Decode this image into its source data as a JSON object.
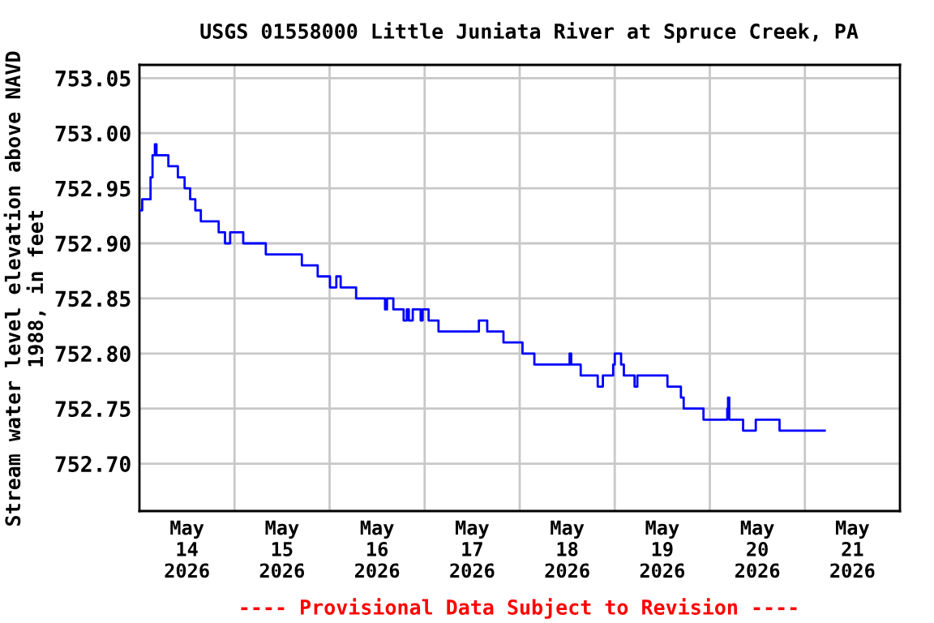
{
  "chart_data": {
    "type": "step",
    "title": "USGS 01558000 Little Juniata River at Spruce Creek, PA",
    "ylabel": "Stream water level elevation above NAVD\n1988, in feet",
    "annotations": [
      "---- Provisional Data Subject to Revision ----"
    ],
    "series": [
      {
        "color": "#0000ff",
        "x": [
          "2026-05-14T00:00",
          "2026-05-14T00:42",
          "2026-05-14T02:48",
          "2026-05-14T03:18",
          "2026-05-14T03:54",
          "2026-05-14T04:18",
          "2026-05-14T07:18",
          "2026-05-14T09:42",
          "2026-05-14T11:24",
          "2026-05-14T12:48",
          "2026-05-14T14:06",
          "2026-05-14T15:30",
          "2026-05-14T20:00",
          "2026-05-14T21:36",
          "2026-05-14T22:54",
          "2026-05-15T02:12",
          "2026-05-15T07:54",
          "2026-05-15T17:00",
          "2026-05-15T21:00",
          "2026-05-16T00:06",
          "2026-05-16T01:42",
          "2026-05-16T02:48",
          "2026-05-16T06:42",
          "2026-05-16T14:00",
          "2026-05-16T14:30",
          "2026-05-16T16:06",
          "2026-05-16T18:42",
          "2026-05-16T19:30",
          "2026-05-16T20:00",
          "2026-05-16T21:00",
          "2026-05-16T23:00",
          "2026-05-16T23:30",
          "2026-05-17T01:00",
          "2026-05-17T03:30",
          "2026-05-17T13:42",
          "2026-05-17T15:48",
          "2026-05-17T19:54",
          "2026-05-18T00:42",
          "2026-05-18T03:42",
          "2026-05-18T12:36",
          "2026-05-18T13:00",
          "2026-05-18T15:24",
          "2026-05-18T19:42",
          "2026-05-18T21:00",
          "2026-05-18T23:36",
          "2026-05-19T00:00",
          "2026-05-19T01:36",
          "2026-05-19T02:18",
          "2026-05-19T05:00",
          "2026-05-19T05:42",
          "2026-05-19T13:18",
          "2026-05-19T16:42",
          "2026-05-19T17:24",
          "2026-05-19T22:24",
          "2026-05-20T04:24",
          "2026-05-20T04:36",
          "2026-05-20T04:54",
          "2026-05-20T08:24",
          "2026-05-20T11:36",
          "2026-05-20T17:36",
          "2026-05-21T05:00"
        ],
        "values": [
          752.93,
          752.94,
          752.96,
          752.98,
          752.99,
          752.98,
          752.97,
          752.96,
          752.95,
          752.94,
          752.93,
          752.92,
          752.91,
          752.9,
          752.91,
          752.9,
          752.89,
          752.88,
          752.87,
          752.86,
          752.87,
          752.86,
          752.85,
          752.84,
          752.85,
          752.84,
          752.83,
          752.84,
          752.83,
          752.84,
          752.83,
          752.84,
          752.83,
          752.82,
          752.83,
          752.82,
          752.81,
          752.8,
          752.79,
          752.8,
          752.79,
          752.78,
          752.77,
          752.78,
          752.79,
          752.8,
          752.79,
          752.78,
          752.77,
          752.78,
          752.77,
          752.76,
          752.75,
          752.74,
          752.75,
          752.76,
          752.74,
          752.73,
          752.74,
          752.73,
          752.73
        ]
      }
    ],
    "xlim": [
      "2026-05-14T00:00",
      "2026-05-22T00:00"
    ],
    "xticks": [
      {
        "value": "2026-05-14T12:00",
        "label": "May\n14\n2026"
      },
      {
        "value": "2026-05-15T12:00",
        "label": "May\n15\n2026"
      },
      {
        "value": "2026-05-16T12:00",
        "label": "May\n16\n2026"
      },
      {
        "value": "2026-05-17T12:00",
        "label": "May\n17\n2026"
      },
      {
        "value": "2026-05-18T12:00",
        "label": "May\n18\n2026"
      },
      {
        "value": "2026-05-19T12:00",
        "label": "May\n19\n2026"
      },
      {
        "value": "2026-05-20T12:00",
        "label": "May\n20\n2026"
      },
      {
        "value": "2026-05-21T12:00",
        "label": "May\n21\n2026"
      },
      {
        "value": "2026-05-15T00:00",
        "label": null
      },
      {
        "value": "2026-05-16T00:00",
        "label": null
      },
      {
        "value": "2026-05-17T00:00",
        "label": null
      },
      {
        "value": "2026-05-18T00:00",
        "label": null
      },
      {
        "value": "2026-05-19T00:00",
        "label": null
      },
      {
        "value": "2026-05-20T00:00",
        "label": null
      },
      {
        "value": "2026-05-21T00:00",
        "label": null
      }
    ],
    "ylim": [
      752.657,
      753.062
    ],
    "yticks": [
      {
        "value": 752.7,
        "label": "752.70"
      },
      752.75,
      {
        "value": 752.8,
        "label": "752.80"
      },
      752.85,
      {
        "value": 752.9,
        "label": "752.90"
      },
      752.95,
      {
        "value": 753.0,
        "label": "753.00"
      },
      753.05
    ],
    "grid": true
  }
}
